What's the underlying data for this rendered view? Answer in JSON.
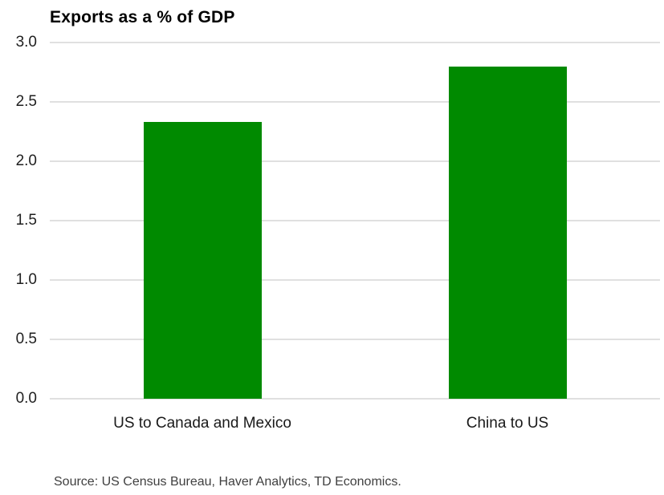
{
  "chart_data": {
    "type": "bar",
    "title": "Exports as a % of GDP",
    "categories": [
      "US to Canada and Mexico",
      "China to US"
    ],
    "values": [
      2.33,
      2.8
    ],
    "xlabel": "",
    "ylabel": "",
    "ylim": [
      0,
      3.0
    ],
    "ytick_step": 0.5,
    "ytick_labels": [
      "0.0",
      "0.5",
      "1.0",
      "1.5",
      "2.0",
      "2.5",
      "3.0"
    ],
    "grid": true,
    "legend": false,
    "bar_color": "#008a00",
    "gridline_color": "#e0e0e0"
  },
  "source_note": "Source: US Census Bureau, Haver Analytics, TD Economics."
}
